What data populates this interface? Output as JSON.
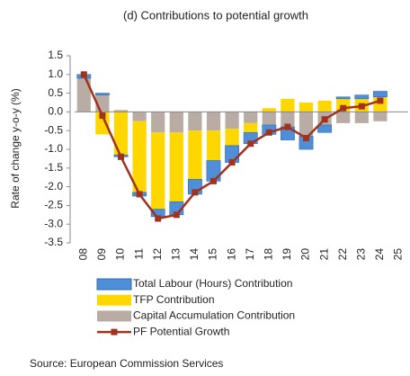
{
  "chart_data": {
    "type": "stacked-bar-line",
    "title": "(d) Contributions to potential growth",
    "y_label": "Rate of change y-o-y (%)",
    "source": "Source: European Commission Services",
    "categories": [
      "08",
      "09",
      "10",
      "11",
      "12",
      "13",
      "14",
      "15",
      "16",
      "17",
      "18",
      "19",
      "20",
      "21",
      "22",
      "23",
      "24",
      "25"
    ],
    "series": [
      {
        "name": "Total Labour (Hours) Contribution",
        "color": "#4f8fd9",
        "kind": "bar",
        "values": [
          0.1,
          0.05,
          -0.05,
          -0.1,
          -0.2,
          -0.35,
          -0.4,
          -0.55,
          -0.45,
          -0.3,
          -0.25,
          -0.35,
          -0.35,
          -0.2,
          0.05,
          0.1,
          0.15,
          null
        ]
      },
      {
        "name": "TFP Contribution",
        "color": "#ffd700",
        "kind": "bar",
        "values": [
          0.0,
          -0.6,
          -1.15,
          -1.9,
          -2.05,
          -1.85,
          -1.3,
          -0.8,
          -0.45,
          -0.25,
          0.1,
          0.35,
          0.25,
          0.3,
          0.35,
          0.35,
          0.4,
          null
        ]
      },
      {
        "name": "Capital Accumulation Contribution",
        "color": "#b8aca5",
        "kind": "bar",
        "values": [
          0.9,
          0.45,
          0.05,
          -0.25,
          -0.55,
          -0.55,
          -0.5,
          -0.5,
          -0.45,
          -0.3,
          -0.35,
          -0.4,
          -0.65,
          -0.35,
          -0.3,
          -0.3,
          -0.25,
          null
        ]
      },
      {
        "name": "PF Potential Growth",
        "color": "#a0321e",
        "kind": "line",
        "values": [
          1.0,
          -0.1,
          -1.2,
          -2.2,
          -2.85,
          -2.75,
          -2.15,
          -1.85,
          -1.35,
          -0.85,
          -0.55,
          -0.4,
          -0.7,
          -0.2,
          0.1,
          0.15,
          0.3,
          null
        ]
      }
    ],
    "ylim": [
      -3.5,
      1.5
    ],
    "yticks": [
      1.5,
      {
        "value": 1,
        "label": "1.0"
      },
      0.5,
      {
        "value": 0,
        "label": "0.0"
      },
      -0.5,
      {
        "value": -1,
        "label": "-1.0"
      },
      -1.5,
      {
        "value": -2,
        "label": "-2.0"
      },
      -2.5,
      {
        "value": -3,
        "label": "-3.0"
      },
      -3.5
    ]
  }
}
